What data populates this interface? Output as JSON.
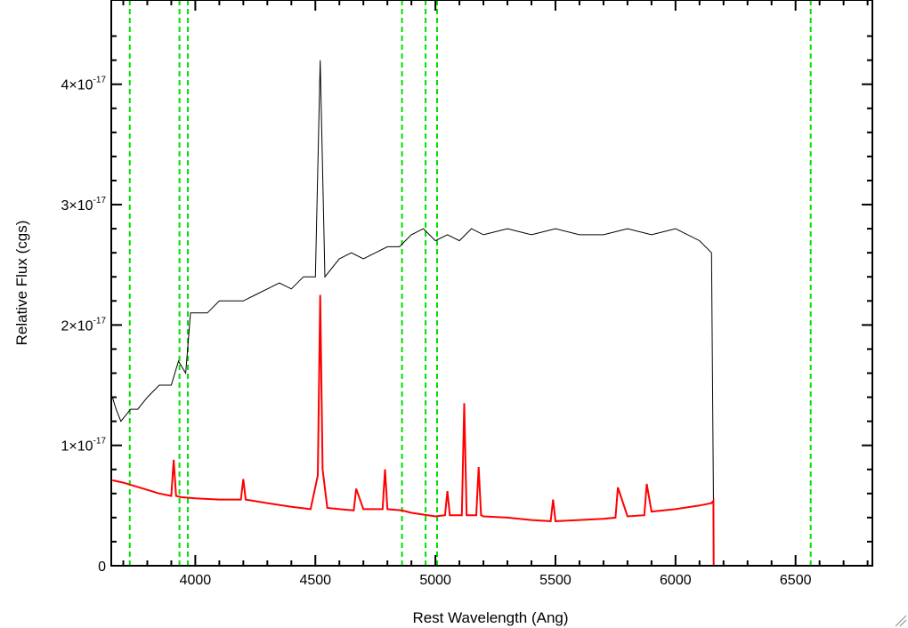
{
  "chart_data": {
    "type": "line",
    "title": "",
    "xlabel": "Rest Wavelength (Ang)",
    "ylabel": "Relative Flux (cgs)",
    "xlim": [
      3650,
      6820
    ],
    "ylim": [
      0,
      4.7
    ],
    "y_unit_exponent": "-17",
    "x_ticks": [
      4000,
      4500,
      5000,
      5500,
      6000,
      6500
    ],
    "y_ticks": [
      {
        "value": 0,
        "mantissa": "0",
        "exp": ""
      },
      {
        "value": 1,
        "mantissa": "1×10",
        "exp": "-17"
      },
      {
        "value": 2,
        "mantissa": "2×10",
        "exp": "-17"
      },
      {
        "value": 3,
        "mantissa": "3×10",
        "exp": "-17"
      },
      {
        "value": 4,
        "mantissa": "4×10",
        "exp": "-17"
      }
    ],
    "grid": false,
    "vertical_lines": {
      "color": "#00e000",
      "style": "dashed",
      "x": [
        3727,
        3934,
        3969,
        4861,
        4959,
        5007,
        6563
      ]
    },
    "series": [
      {
        "color": "#000000",
        "x": [
          3655,
          3670,
          3690,
          3710,
          3730,
          3760,
          3800,
          3850,
          3900,
          3930,
          3960,
          3980,
          4000,
          4050,
          4100,
          4150,
          4200,
          4250,
          4300,
          4350,
          4400,
          4450,
          4500,
          4520,
          4540,
          4600,
          4650,
          4700,
          4750,
          4800,
          4850,
          4900,
          4950,
          5000,
          5050,
          5100,
          5150,
          5200,
          5300,
          5400,
          5500,
          5600,
          5700,
          5800,
          5900,
          6000,
          6100,
          6150,
          6160
        ],
        "y": [
          1.4,
          1.3,
          1.2,
          1.25,
          1.3,
          1.3,
          1.4,
          1.5,
          1.5,
          1.7,
          1.6,
          2.1,
          2.1,
          2.1,
          2.2,
          2.2,
          2.2,
          2.25,
          2.3,
          2.35,
          2.3,
          2.4,
          2.4,
          4.2,
          2.4,
          2.55,
          2.6,
          2.55,
          2.6,
          2.65,
          2.65,
          2.75,
          2.8,
          2.7,
          2.75,
          2.7,
          2.8,
          2.75,
          2.8,
          2.75,
          2.8,
          2.75,
          2.75,
          2.8,
          2.75,
          2.8,
          2.7,
          2.6,
          0
        ]
      },
      {
        "color": "#ff0000",
        "x": [
          3655,
          3700,
          3800,
          3850,
          3900,
          3910,
          3920,
          3940,
          4000,
          4100,
          4190,
          4200,
          4210,
          4300,
          4400,
          4480,
          4510,
          4520,
          4530,
          4550,
          4600,
          4660,
          4670,
          4700,
          4780,
          4790,
          4800,
          4860,
          4900,
          5000,
          5040,
          5050,
          5060,
          5110,
          5120,
          5130,
          5170,
          5180,
          5190,
          5200,
          5300,
          5400,
          5480,
          5490,
          5500,
          5600,
          5700,
          5750,
          5760,
          5800,
          5870,
          5880,
          5900,
          6000,
          6100,
          6150,
          6158,
          6159,
          6165,
          6820
        ],
        "y": [
          0.71,
          0.69,
          0.63,
          0.6,
          0.58,
          0.88,
          0.58,
          0.57,
          0.56,
          0.55,
          0.55,
          0.72,
          0.55,
          0.52,
          0.49,
          0.47,
          0.75,
          2.25,
          0.8,
          0.48,
          0.47,
          0.46,
          0.64,
          0.47,
          0.47,
          0.8,
          0.47,
          0.46,
          0.44,
          0.41,
          0.42,
          0.62,
          0.42,
          0.42,
          1.35,
          0.42,
          0.42,
          0.82,
          0.42,
          0.41,
          0.4,
          0.38,
          0.37,
          0.55,
          0.37,
          0.38,
          0.39,
          0.4,
          0.65,
          0.41,
          0.42,
          0.68,
          0.45,
          0.47,
          0.5,
          0.52,
          0.54,
          0,
          0,
          0
        ]
      }
    ]
  }
}
